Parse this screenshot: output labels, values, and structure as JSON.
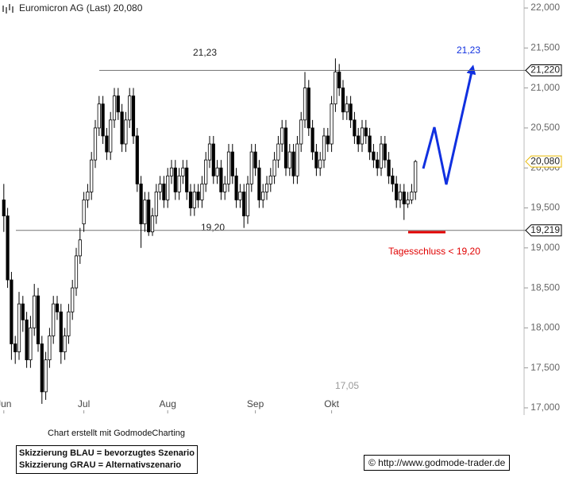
{
  "chart_data": {
    "type": "candlestick",
    "title": "Euromicron AG (Last) 20,080",
    "open": [
      19.6,
      19.4,
      18.6,
      17.8,
      17.7,
      18.3,
      18.1,
      17.6,
      18.0,
      18.4,
      17.8,
      17.2,
      17.6,
      17.9,
      18.3,
      18.2,
      17.7,
      17.9,
      18.2,
      18.5,
      18.9,
      19.3,
      19.6,
      19.7,
      20.1,
      20.5,
      20.8,
      20.4,
      20.2,
      20.6,
      20.9,
      20.7,
      20.3,
      20.6,
      20.9,
      20.4,
      19.8,
      19.3,
      19.6,
      19.2,
      19.4,
      19.7,
      19.8,
      19.6,
      19.9,
      20.0,
      19.7,
      19.9,
      20.0,
      19.7,
      19.5,
      19.7,
      19.6,
      19.8,
      20.1,
      20.3,
      19.9,
      20.0,
      19.7,
      19.8,
      20.2,
      19.9,
      19.6,
      19.7,
      19.4,
      19.8,
      20.2,
      20.0,
      19.6,
      19.7,
      19.8,
      19.9,
      20.1,
      20.3,
      20.5,
      20.0,
      20.2,
      19.9,
      20.3,
      20.6,
      21.0,
      20.5,
      20.2,
      20.0,
      20.1,
      20.4,
      20.3,
      20.8,
      21.2,
      21.0,
      20.7,
      20.8,
      20.6,
      20.4,
      20.3,
      20.5,
      20.4,
      20.2,
      20.1,
      20.0,
      20.3,
      20.1,
      19.9,
      19.8,
      19.6,
      19.7,
      19.55,
      19.6,
      19.7
    ],
    "high": [
      19.8,
      19.5,
      18.7,
      17.9,
      18.45,
      18.4,
      18.2,
      18.15,
      18.55,
      18.5,
      17.9,
      17.7,
      18.0,
      18.4,
      18.4,
      18.3,
      18.0,
      18.3,
      18.6,
      19.0,
      19.25,
      19.7,
      19.8,
      20.2,
      20.6,
      20.9,
      20.9,
      20.5,
      20.7,
      21.0,
      21.0,
      20.8,
      20.7,
      21.0,
      21.0,
      20.5,
      19.9,
      19.7,
      19.7,
      19.5,
      19.8,
      19.9,
      19.9,
      20.0,
      20.1,
      20.1,
      20.0,
      20.1,
      20.1,
      19.8,
      19.8,
      19.8,
      19.9,
      20.2,
      20.4,
      20.4,
      20.1,
      20.1,
      19.9,
      20.3,
      20.3,
      20.0,
      19.8,
      19.8,
      19.9,
      20.3,
      20.3,
      20.1,
      19.8,
      19.9,
      20.0,
      20.2,
      20.4,
      20.6,
      20.6,
      20.3,
      20.3,
      20.4,
      20.7,
      21.2,
      21.1,
      20.6,
      20.3,
      20.2,
      20.5,
      20.5,
      20.9,
      21.37,
      21.3,
      21.1,
      20.9,
      20.9,
      20.7,
      20.5,
      20.6,
      20.6,
      20.5,
      20.3,
      20.2,
      20.4,
      20.4,
      20.2,
      20.0,
      19.9,
      19.8,
      19.8,
      19.7,
      19.8,
      20.1
    ],
    "low": [
      19.2,
      18.5,
      17.6,
      17.55,
      17.6,
      17.95,
      17.5,
      17.5,
      17.9,
      17.7,
      17.05,
      17.1,
      17.5,
      17.8,
      18.1,
      17.55,
      17.6,
      17.8,
      18.1,
      18.4,
      18.8,
      19.2,
      19.5,
      19.6,
      20.0,
      20.4,
      20.3,
      20.1,
      20.1,
      20.5,
      20.6,
      20.2,
      20.2,
      20.5,
      20.3,
      19.7,
      19.0,
      19.2,
      19.15,
      19.15,
      19.3,
      19.6,
      19.5,
      19.5,
      19.8,
      19.6,
      19.6,
      19.8,
      19.6,
      19.4,
      19.4,
      19.5,
      19.5,
      19.7,
      20.0,
      19.8,
      19.8,
      19.6,
      19.6,
      19.7,
      19.8,
      19.5,
      19.5,
      19.25,
      19.3,
      19.7,
      19.9,
      19.5,
      19.5,
      19.6,
      19.7,
      19.8,
      20.0,
      20.2,
      19.9,
      19.9,
      19.8,
      19.8,
      20.2,
      20.5,
      20.4,
      20.1,
      19.9,
      19.9,
      20.0,
      20.2,
      20.2,
      20.7,
      20.9,
      20.6,
      20.6,
      20.5,
      20.3,
      20.2,
      20.2,
      20.3,
      20.1,
      20.0,
      19.9,
      19.9,
      20.0,
      19.8,
      19.7,
      19.5,
      19.5,
      19.35,
      19.5,
      19.55,
      19.6
    ],
    "close": [
      19.4,
      18.6,
      17.8,
      17.7,
      18.3,
      18.1,
      17.6,
      18.0,
      18.4,
      17.8,
      17.2,
      17.6,
      17.9,
      18.3,
      18.2,
      17.7,
      17.9,
      18.2,
      18.5,
      18.9,
      19.1,
      19.6,
      19.7,
      20.1,
      20.5,
      20.8,
      20.4,
      20.2,
      20.6,
      20.9,
      20.7,
      20.3,
      20.6,
      20.9,
      20.4,
      19.8,
      19.3,
      19.6,
      19.2,
      19.4,
      19.7,
      19.8,
      19.6,
      19.9,
      20.0,
      19.7,
      19.9,
      20.0,
      19.7,
      19.5,
      19.7,
      19.6,
      19.8,
      20.1,
      20.3,
      19.9,
      20.0,
      19.7,
      19.8,
      20.2,
      19.9,
      19.6,
      19.7,
      19.4,
      19.8,
      20.2,
      20.0,
      19.6,
      19.7,
      19.8,
      19.9,
      20.1,
      20.3,
      20.5,
      20.0,
      20.2,
      19.9,
      20.3,
      20.6,
      21.0,
      20.5,
      20.2,
      20.0,
      20.1,
      20.4,
      20.3,
      20.8,
      21.2,
      21.0,
      20.7,
      20.8,
      20.6,
      20.4,
      20.3,
      20.5,
      20.4,
      20.2,
      20.1,
      20.0,
      20.3,
      20.1,
      19.9,
      19.8,
      19.6,
      19.7,
      19.55,
      19.6,
      19.7,
      20.08
    ],
    "xlim": [
      -1,
      136.5
    ],
    "xticks": [
      {
        "value": 0,
        "label": "Jun"
      },
      {
        "value": 21,
        "label": "Jul"
      },
      {
        "value": 43,
        "label": "Aug"
      },
      {
        "value": 66,
        "label": "Sep"
      },
      {
        "value": 86,
        "label": "Okt"
      }
    ],
    "ylim": [
      16.93,
      22.1
    ],
    "yticks": [
      {
        "value": 17,
        "label": "17,000"
      },
      {
        "value": 17.5,
        "label": "17,500"
      },
      {
        "value": 18,
        "label": "18,000"
      },
      {
        "value": 18.5,
        "label": "18,500"
      },
      {
        "value": 19,
        "label": "19,000"
      },
      {
        "value": 19.5,
        "label": "19,500"
      },
      {
        "value": 20,
        "label": "20,000"
      },
      {
        "value": 20.5,
        "label": "20,500"
      },
      {
        "value": 21,
        "label": "21,000"
      },
      {
        "value": 21.5,
        "label": "21,500"
      },
      {
        "value": 22,
        "label": "22,000"
      }
    ],
    "grid": false,
    "levels": [
      {
        "value": 21.22,
        "label": "21,220"
      },
      {
        "value": 19.219,
        "label": "19,219"
      }
    ],
    "last": {
      "value": 20.08,
      "label": "20,080"
    },
    "resistance_label": "21,23",
    "support_label": "19,20",
    "low_label": "17,05",
    "target_label": "21,23",
    "stop_label": "Tagesschluss < 19,20"
  },
  "footer": {
    "note": "Chart erstellt mit GodmodeCharting",
    "legend": [
      "Skizzierung BLAU = bevorzugtes Szenario",
      "Skizzierung GRAU = Alternativszenario"
    ],
    "copyright": "© http://www.godmode-trader.de"
  }
}
